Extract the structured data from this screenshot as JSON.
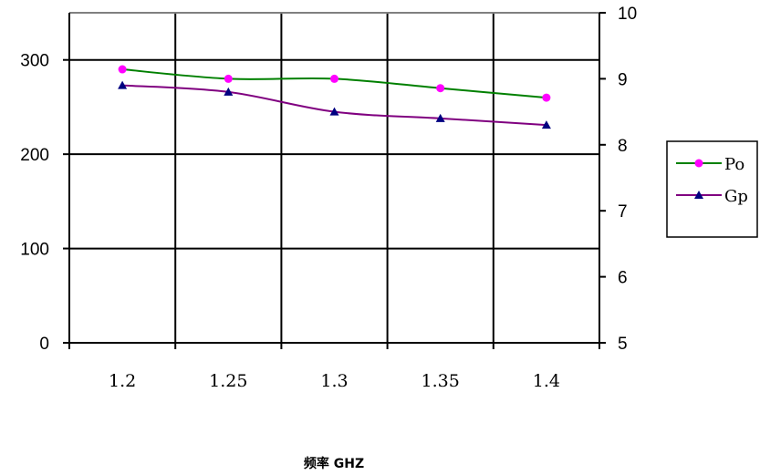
{
  "chart_data": {
    "type": "line",
    "x": [
      "1.2",
      "1.25",
      "1.3",
      "1.35",
      "1.4"
    ],
    "xlabel": "频率 GHZ",
    "y_left": {
      "min": 0,
      "max": 350,
      "ticks": [
        "0",
        "100",
        "200",
        "300"
      ]
    },
    "y_right": {
      "min": 5,
      "max": 10,
      "ticks": [
        "5",
        "6",
        "7",
        "8",
        "9",
        "10"
      ]
    },
    "grid": true,
    "legend_position": "right",
    "series": [
      {
        "name": "Po",
        "axis": "left",
        "values": [
          290,
          280,
          280,
          270,
          260
        ],
        "line_color": "#008000",
        "marker": "circle",
        "marker_color": "#ff00ff"
      },
      {
        "name": "Gp",
        "axis": "right",
        "values": [
          8.9,
          8.8,
          8.5,
          8.4,
          8.3
        ],
        "line_color": "#800080",
        "marker": "triangle",
        "marker_color": "#000080"
      }
    ]
  }
}
